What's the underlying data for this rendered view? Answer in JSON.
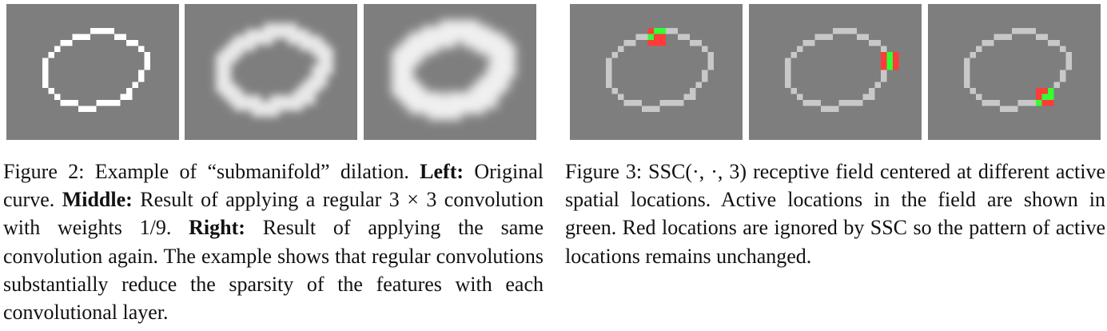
{
  "figure2": {
    "panels": [
      {
        "id": "left",
        "kind": "original_curve"
      },
      {
        "id": "middle",
        "kind": "one_convolution"
      },
      {
        "id": "right",
        "kind": "two_convolutions"
      }
    ],
    "caption": {
      "prefix": "Figure 2:",
      "text1": "Example of “submanifold” dilation.",
      "left_label": "Left:",
      "left_text": "Original curve.",
      "middle_label": "Middle:",
      "middle_text_a": "Result of applying a regular",
      "kernel": "3 × 3",
      "middle_text_b": "convolution with weights",
      "weight": "1/9.",
      "right_label": "Right:",
      "right_text": "Result of applying the same convolution again. The example shows that regular convolutions substantially reduce the sparsity of the features with each convolutional layer."
    }
  },
  "figure3": {
    "panels": [
      {
        "id": "ssc-1",
        "center": "top of curve"
      },
      {
        "id": "ssc-2",
        "center": "right side of curve"
      },
      {
        "id": "ssc-3",
        "center": "lower-right of curve"
      }
    ],
    "colors": {
      "background": "#7e7e7e",
      "curve": "#c8c8c8",
      "active": "#33ff33",
      "ignored": "#ff3b3b",
      "white": "#ffffff"
    },
    "caption": {
      "prefix": "Figure 3:",
      "math": "SSC(·, ·, 3)",
      "text": "receptive field centered at different active spatial locations. Active locations in the field are shown in green. Red locations are ignored by SSC so the pattern of active locations remains unchanged."
    }
  }
}
